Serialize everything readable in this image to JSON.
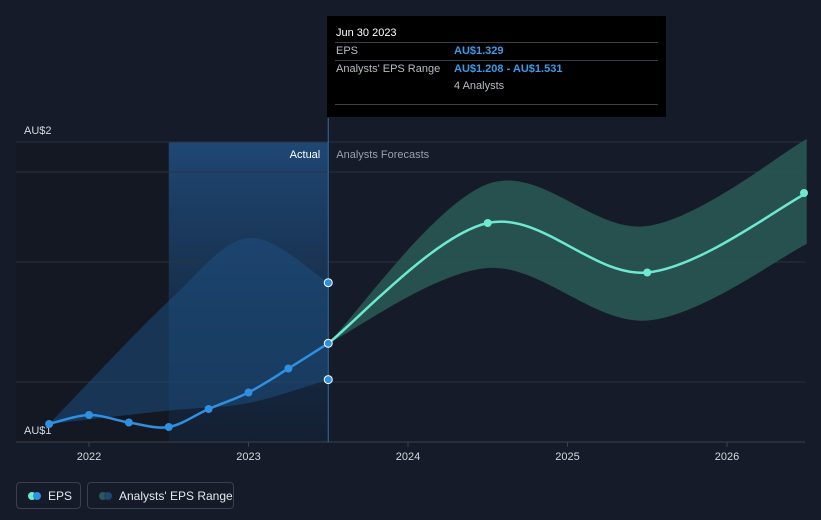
{
  "chart_data": {
    "type": "line",
    "y_axis": {
      "ticks": [
        {
          "label": "AU$2",
          "value": 2
        },
        {
          "label": "AU$1",
          "value": 1
        }
      ]
    },
    "x_axis": {
      "ticks": [
        {
          "label": "2022",
          "value": 2022
        },
        {
          "label": "2023",
          "value": 2023
        },
        {
          "label": "2024",
          "value": 2024
        },
        {
          "label": "2025",
          "value": 2025
        },
        {
          "label": "2026",
          "value": 2026
        }
      ]
    },
    "labels": {
      "actual": "Actual",
      "forecast": "Analysts Forecasts"
    },
    "series": [
      {
        "name": "EPS",
        "actual": [
          {
            "x": 2021.75,
            "y": 1.06
          },
          {
            "x": 2022.0,
            "y": 1.09
          },
          {
            "x": 2022.25,
            "y": 1.065
          },
          {
            "x": 2022.5,
            "y": 1.05
          },
          {
            "x": 2022.75,
            "y": 1.11
          },
          {
            "x": 2023.0,
            "y": 1.165
          },
          {
            "x": 2023.25,
            "y": 1.245
          },
          {
            "x": 2023.5,
            "y": 1.329
          }
        ],
        "forecast": [
          {
            "x": 2023.5,
            "y": 1.329
          },
          {
            "x": 2024.5,
            "y": 1.73
          },
          {
            "x": 2025.5,
            "y": 1.565
          },
          {
            "x": 2026.5,
            "y": 1.83
          }
        ]
      },
      {
        "name": "Analysts' EPS Range",
        "actual_high": [
          {
            "x": 2021.75,
            "y": 1.06
          },
          {
            "x": 2022.5,
            "y": 1.47
          },
          {
            "x": 2023.0,
            "y": 1.68
          },
          {
            "x": 2023.5,
            "y": 1.531
          }
        ],
        "actual_low": [
          {
            "x": 2021.75,
            "y": 1.06
          },
          {
            "x": 2022.5,
            "y": 1.105
          },
          {
            "x": 2023.0,
            "y": 1.13
          },
          {
            "x": 2023.5,
            "y": 1.208
          }
        ],
        "forecast_high": [
          {
            "x": 2023.5,
            "y": 1.329
          },
          {
            "x": 2024.5,
            "y": 1.86
          },
          {
            "x": 2025.5,
            "y": 1.72
          },
          {
            "x": 2026.5,
            "y": 2.01
          }
        ],
        "forecast_low": [
          {
            "x": 2023.5,
            "y": 1.329
          },
          {
            "x": 2024.5,
            "y": 1.58
          },
          {
            "x": 2025.5,
            "y": 1.405
          },
          {
            "x": 2026.5,
            "y": 1.66
          }
        ]
      }
    ],
    "markers": {
      "eps": [
        {
          "x": 2021.75,
          "y": 1.06
        },
        {
          "x": 2022.0,
          "y": 1.09
        },
        {
          "x": 2022.25,
          "y": 1.065
        },
        {
          "x": 2022.5,
          "y": 1.05
        },
        {
          "x": 2022.75,
          "y": 1.11
        },
        {
          "x": 2023.0,
          "y": 1.165
        },
        {
          "x": 2023.25,
          "y": 1.245
        },
        {
          "x": 2023.5,
          "y": 1.329
        }
      ],
      "range_ends": [
        {
          "x": 2023.5,
          "y": 1.531
        },
        {
          "x": 2023.5,
          "y": 1.208
        }
      ],
      "forecast": [
        {
          "x": 2024.5,
          "y": 1.73
        },
        {
          "x": 2025.5,
          "y": 1.565
        },
        {
          "x": 2026.5,
          "y": 1.83
        }
      ]
    },
    "grid": true,
    "colors": {
      "eps_actual": "#2f8fe0",
      "eps_forecast": "#6ee8d0",
      "range_forecast": "#2a5a56",
      "band": "#1f4770",
      "background": "#151b28"
    }
  },
  "tooltip": {
    "date": "Jun 30 2023",
    "rows": [
      {
        "label": "EPS",
        "value": "AU$1.329"
      },
      {
        "label": "Analysts' EPS Range",
        "value": "AU$1.208 - AU$1.531"
      },
      {
        "label": "",
        "value": "4 Analysts"
      }
    ]
  },
  "legend": {
    "eps_label": "EPS",
    "range_label": "Analysts' EPS Range"
  }
}
